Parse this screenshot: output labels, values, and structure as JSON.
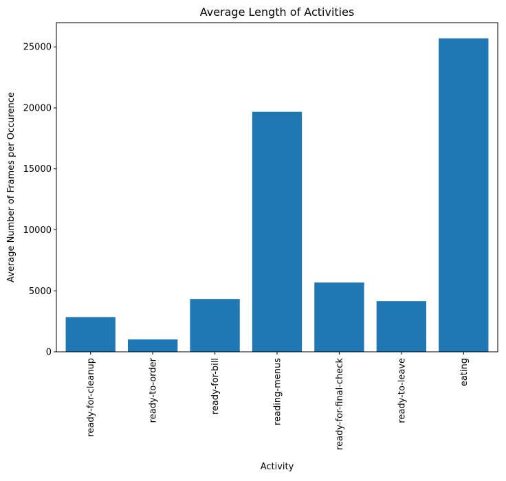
{
  "chart_data": {
    "type": "bar",
    "title": "Average Length of Activities",
    "xlabel": "Activity",
    "ylabel": "Average Number of Frames per Occurence",
    "categories": [
      "ready-for-cleanup",
      "ready-to-order",
      "ready-for-bill",
      "reading-menus",
      "ready-for-final-check",
      "ready-to-leave",
      "eating"
    ],
    "values": [
      2850,
      1020,
      4330,
      19680,
      5680,
      4160,
      25700
    ],
    "ylim": [
      0,
      26985
    ],
    "yticks": [
      0,
      5000,
      10000,
      15000,
      20000,
      25000
    ],
    "ytick_labels": [
      "0",
      "5000",
      "10000",
      "15000",
      "20000",
      "25000"
    ],
    "grid": false,
    "legend": "none",
    "bar_color": "#1f77b4"
  }
}
